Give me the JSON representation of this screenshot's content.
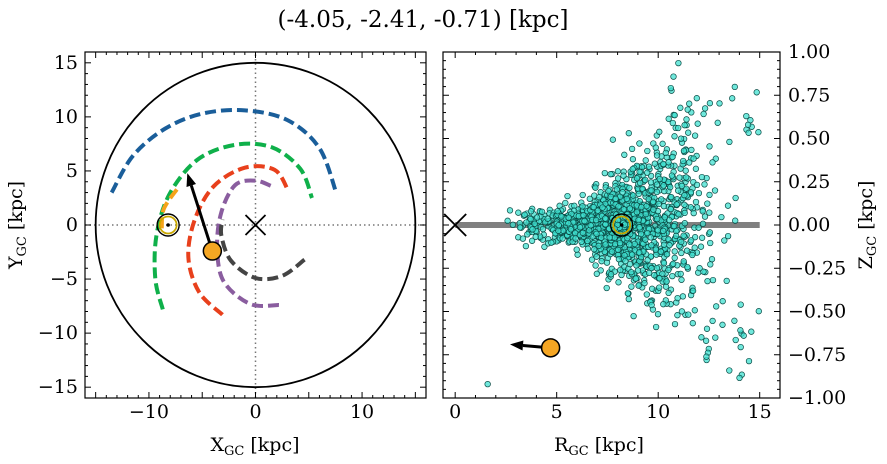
{
  "figure_title": "(-4.05, -2.41, -0.71) [kpc]",
  "colors": {
    "spiral_arms": [
      "#1a5e9a",
      "#0fb04a",
      "#e8401c",
      "#f5a31a",
      "#8a5d9f",
      "#444444"
    ],
    "star_marker": "#f5a623",
    "sun_ring": "#c9a800",
    "stars": "#40e0d0",
    "disk_line": "#808080"
  },
  "chart_data": [
    {
      "type": "scatter",
      "panel": "left",
      "xlabel": "X",
      "xlabel_sub": "GC",
      "xlabel_unit": " [kpc]",
      "ylabel": "Y",
      "ylabel_sub": "GC",
      "ylabel_unit": " [kpc]",
      "xlim": [
        -16,
        16
      ],
      "ylim": [
        -16,
        16
      ],
      "xticks": [
        -10,
        0,
        10
      ],
      "xtick_labels": [
        "−10",
        "0",
        "10"
      ],
      "yticks": [
        -15,
        -10,
        -5,
        0,
        5,
        10,
        15
      ],
      "ytick_labels": [
        "−15",
        "−10",
        "−5",
        "0",
        "5",
        "10",
        "15"
      ],
      "grid": false,
      "boundary_circle_radius": 15,
      "galactic_center": [
        0,
        0
      ],
      "sun": [
        -8.2,
        0.0
      ],
      "star": [
        -4.05,
        -2.41
      ],
      "motion_arrow_tip": [
        -6.4,
        4.8
      ],
      "spiral_arms": [
        {
          "color": "#1a5e9a",
          "points": [
            [
              -13.5,
              3.0
            ],
            [
              -11.5,
              6.4
            ],
            [
              -8.5,
              8.9
            ],
            [
              -5,
              10.3
            ],
            [
              -1,
              10.6
            ],
            [
              3,
              9.7
            ],
            [
              6,
              7.1
            ],
            [
              7.6,
              2.9
            ]
          ]
        },
        {
          "color": "#0fb04a",
          "points": [
            [
              -8.7,
              -7.8
            ],
            [
              -9.4,
              -5
            ],
            [
              -9.3,
              -1
            ],
            [
              -8.1,
              2.8
            ],
            [
              -5.5,
              6.0
            ],
            [
              -2,
              7.4
            ],
            [
              1.5,
              7.2
            ],
            [
              4.2,
              5.2
            ],
            [
              5.3,
              2.5
            ]
          ]
        },
        {
          "color": "#e8401c",
          "points": [
            [
              -3.1,
              -8.3
            ],
            [
              -5.3,
              -6.2
            ],
            [
              -6.3,
              -3
            ],
            [
              -5.7,
              0.5
            ],
            [
              -3.9,
              3.6
            ],
            [
              -1,
              5.3
            ],
            [
              1.8,
              5.1
            ],
            [
              3.1,
              3.1
            ]
          ]
        },
        {
          "color": "#f5a31a",
          "points": [
            [
              -8.8,
              -0.3
            ],
            [
              -8.6,
              1.5
            ],
            [
              -7.3,
              3.4
            ]
          ]
        },
        {
          "color": "#8a5d9f",
          "points": [
            [
              2.2,
              -7.4
            ],
            [
              -0.5,
              -7.3
            ],
            [
              -3,
              -5.2
            ],
            [
              -3.6,
              -2
            ],
            [
              -3.2,
              1.2
            ],
            [
              -1.9,
              3.7
            ],
            [
              0,
              4.1
            ],
            [
              1.5,
              3.6
            ]
          ]
        },
        {
          "color": "#444444",
          "points": [
            [
              4.6,
              -3.2
            ],
            [
              2.5,
              -4.7
            ],
            [
              0,
              -4.9
            ],
            [
              -2.3,
              -3.3
            ],
            [
              -3.2,
              -1
            ],
            [
              -3.1,
              0.5
            ]
          ]
        }
      ]
    },
    {
      "type": "scatter",
      "panel": "right",
      "xlabel": "R",
      "xlabel_sub": "GC",
      "xlabel_unit": " [kpc]",
      "ylabel": "Z",
      "ylabel_sub": "GC",
      "ylabel_unit": " [kpc]",
      "xlim": [
        -0.6,
        16
      ],
      "ylim": [
        -1,
        1
      ],
      "xticks": [
        0,
        5,
        10,
        15
      ],
      "xtick_labels": [
        "0",
        "5",
        "10",
        "15"
      ],
      "yticks": [
        -1,
        -0.75,
        -0.5,
        -0.25,
        0,
        0.25,
        0.5,
        0.75,
        1
      ],
      "ytick_labels": [
        "−1.00",
        "−0.75",
        "−0.50",
        "−0.25",
        "0.00",
        "0.25",
        "0.50",
        "0.75",
        "1.00"
      ],
      "yaxis_side": "right",
      "grid": false,
      "disk_line": {
        "x": [
          0,
          15
        ],
        "y": 0
      },
      "galactic_center": [
        0,
        0
      ],
      "sun": [
        8.2,
        0.0
      ],
      "star": [
        4.7,
        -0.71
      ],
      "motion_arrow_tip": [
        2.7,
        -0.69
      ],
      "stars_cluster": {
        "count": 1400,
        "center": [
          8.2,
          0.0
        ],
        "r_range": [
          1.5,
          15
        ],
        "z_range": [
          -1,
          1
        ]
      }
    }
  ]
}
